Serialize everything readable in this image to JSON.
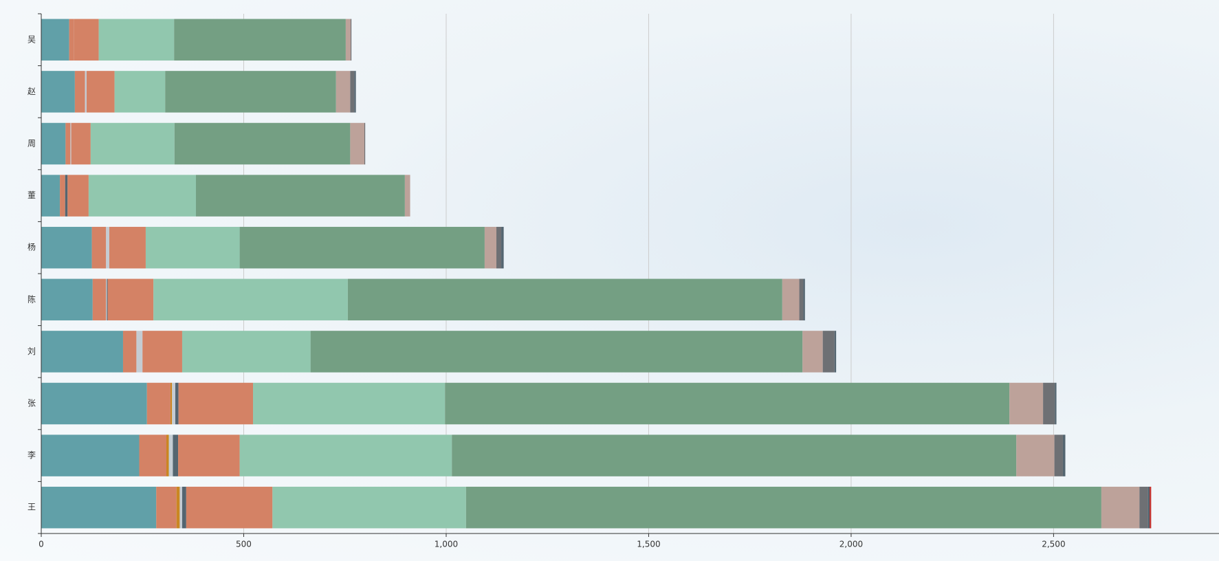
{
  "chart_data": {
    "type": "stacked-bar-horizontal",
    "categories": [
      "王",
      "李",
      "张",
      "刘",
      "陈",
      "杨",
      "董",
      "周",
      "赵",
      "吴"
    ],
    "series": [
      {
        "color": "#61a0a8",
        "values": [
          284,
          242,
          261,
          202,
          127,
          125,
          46,
          60,
          83,
          69
        ]
      },
      {
        "color": "#d48265",
        "values": [
          50,
          67,
          58,
          33,
          33,
          35,
          13,
          12,
          25,
          12
        ]
      },
      {
        "color": "#ca8622",
        "values": [
          8,
          6,
          4,
          0,
          0,
          0,
          0,
          0,
          0,
          0
        ]
      },
      {
        "color": "#c4ccd3",
        "values": [
          6,
          10,
          8,
          15,
          2,
          8,
          0,
          2,
          4,
          0
        ]
      },
      {
        "color": "#546570",
        "values": [
          10,
          13,
          8,
          0,
          2,
          0,
          6,
          0,
          0,
          0
        ]
      },
      {
        "color": "#d48265",
        "values": [
          213,
          152,
          184,
          98,
          113,
          90,
          52,
          48,
          69,
          61
        ]
      },
      {
        "color": "#91c7ae",
        "values": [
          478,
          524,
          474,
          317,
          480,
          232,
          265,
          207,
          125,
          186
        ]
      },
      {
        "color": "#749f83",
        "values": [
          1569,
          1394,
          1394,
          1215,
          1073,
          605,
          516,
          434,
          422,
          424
        ]
      },
      {
        "color": "#bda29a",
        "values": [
          94,
          94,
          83,
          50,
          42,
          29,
          13,
          35,
          35,
          12
        ]
      },
      {
        "color": "#6e7074",
        "values": [
          21,
          21,
          29,
          29,
          10,
          12,
          0,
          2,
          10,
          2
        ]
      },
      {
        "color": "#546570",
        "values": [
          4,
          6,
          4,
          4,
          4,
          6,
          0,
          0,
          4,
          0
        ]
      },
      {
        "color": "#c23531",
        "values": [
          4,
          0,
          0,
          0,
          0,
          0,
          0,
          0,
          0,
          0
        ]
      }
    ],
    "xlim": [
      0,
      2900
    ],
    "xticks": [
      0,
      500,
      {
        "value": 1000,
        "label": "1,000"
      },
      {
        "value": 1500,
        "label": "1,500"
      },
      {
        "value": 2000,
        "label": "2,000"
      },
      {
        "value": 2500,
        "label": "2,500"
      }
    ],
    "grid": true
  }
}
